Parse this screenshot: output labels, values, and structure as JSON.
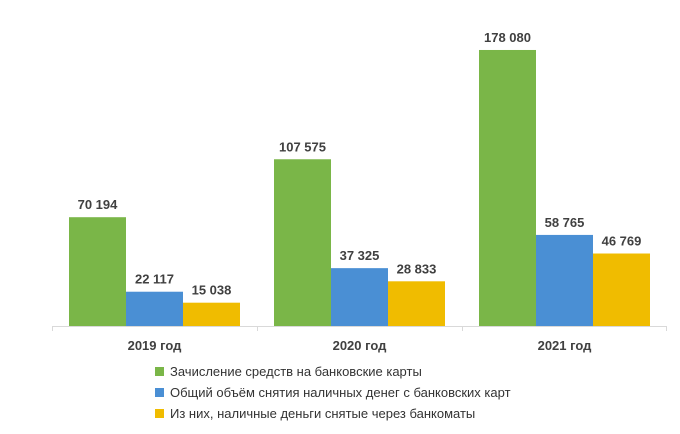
{
  "chart_data": {
    "type": "bar",
    "categories": [
      "2019 год",
      "2020 год",
      "2021 год"
    ],
    "series": [
      {
        "name": "Зачисление  средств на банковские карты",
        "color": "#7ab648",
        "values": [
          70194,
          107575,
          178080
        ],
        "labels": [
          "70 194",
          "107 575",
          "178 080"
        ]
      },
      {
        "name": "Общий  объём снятия наличных  денег с банковских карт",
        "color": "#4a8fd4",
        "values": [
          22117,
          37325,
          58765
        ],
        "labels": [
          "22 117",
          "37 325",
          "58 765"
        ]
      },
      {
        "name": "Из них,  наличные  деньги снятые через банкоматы",
        "color": "#f0bc00",
        "values": [
          15038,
          28833,
          46769
        ],
        "labels": [
          "15 038",
          "28 833",
          "46 769"
        ]
      }
    ],
    "ylim": [
      0,
      180000
    ],
    "grid": false,
    "legend_position": "bottom",
    "title": "",
    "xlabel": "",
    "ylabel": ""
  }
}
